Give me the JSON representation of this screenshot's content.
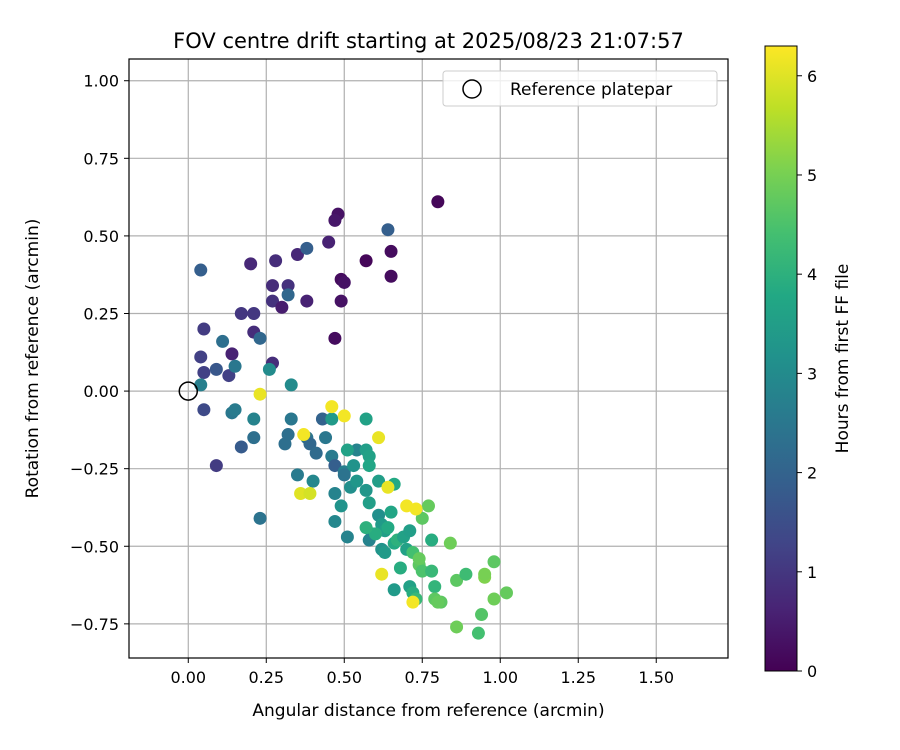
{
  "chart_data": {
    "type": "scatter",
    "title": "FOV centre drift starting at 2025/08/23 21:07:57",
    "xlabel": "Angular distance from reference (arcmin)",
    "ylabel": "Rotation from reference (arcmin)",
    "xlim": [
      -0.19,
      1.73
    ],
    "ylim": [
      -0.86,
      1.07
    ],
    "xticks": [
      "0.00",
      "0.25",
      "0.50",
      "0.75",
      "1.00",
      "1.25",
      "1.50"
    ],
    "xtick_values": [
      0,
      0.25,
      0.5,
      0.75,
      1.0,
      1.25,
      1.5
    ],
    "yticks": [
      "−0.75",
      "−0.50",
      "−0.25",
      "0.00",
      "0.25",
      "0.50",
      "0.75",
      "1.00"
    ],
    "ytick_values": [
      -0.75,
      -0.5,
      -0.25,
      0,
      0.25,
      0.5,
      0.75,
      1.0
    ],
    "grid": true,
    "legend": {
      "placement": "top-right",
      "entries": [
        "Reference platepar"
      ]
    },
    "reference_point": {
      "x": 0,
      "y": 0
    },
    "colorbar": {
      "label": "Hours from first FF file",
      "range": [
        0,
        6.3
      ],
      "ticks": [
        "0",
        "1",
        "2",
        "3",
        "4",
        "5",
        "6"
      ],
      "tick_values": [
        0,
        1,
        2,
        3,
        4,
        5,
        6
      ],
      "colormap": "viridis"
    },
    "points": [
      [
        0.8,
        0.61,
        0.1
      ],
      [
        0.48,
        0.57,
        0.3
      ],
      [
        0.47,
        0.55,
        0.4
      ],
      [
        0.65,
        0.45,
        0.2
      ],
      [
        0.65,
        0.37,
        0.2
      ],
      [
        0.57,
        0.42,
        0.1
      ],
      [
        0.49,
        0.36,
        0.2
      ],
      [
        0.5,
        0.35,
        0.3
      ],
      [
        0.49,
        0.29,
        0.3
      ],
      [
        0.45,
        0.48,
        0.6
      ],
      [
        0.35,
        0.44,
        0.7
      ],
      [
        0.28,
        0.42,
        0.8
      ],
      [
        0.2,
        0.41,
        0.7
      ],
      [
        0.27,
        0.34,
        0.8
      ],
      [
        0.32,
        0.34,
        0.9
      ],
      [
        0.27,
        0.29,
        0.9
      ],
      [
        0.38,
        0.29,
        0.6
      ],
      [
        0.3,
        0.27,
        0.5
      ],
      [
        0.47,
        0.17,
        0.2
      ],
      [
        0.21,
        0.19,
        0.8
      ],
      [
        0.21,
        0.25,
        1.0
      ],
      [
        0.17,
        0.25,
        1.0
      ],
      [
        0.14,
        0.12,
        0.6
      ],
      [
        0.27,
        0.09,
        0.8
      ],
      [
        0.13,
        0.05,
        1.2
      ],
      [
        0.05,
        0.2,
        1.1
      ],
      [
        0.05,
        0.06,
        1.2
      ],
      [
        0.04,
        0.11,
        1.2
      ],
      [
        0.09,
        -0.24,
        1.1
      ],
      [
        0.05,
        -0.06,
        1.4
      ],
      [
        0.04,
        0.39,
        1.9
      ],
      [
        0.38,
        0.46,
        1.9
      ],
      [
        0.64,
        0.52,
        1.9
      ],
      [
        0.32,
        0.31,
        2.1
      ],
      [
        0.11,
        0.16,
        2.3
      ],
      [
        0.09,
        0.07,
        1.7
      ],
      [
        0.15,
        0.08,
        2.5
      ],
      [
        0.23,
        0.17,
        2.1
      ],
      [
        0.04,
        0.02,
        2.7
      ],
      [
        0.26,
        0.07,
        3.0
      ],
      [
        0.33,
        0.02,
        3.0
      ],
      [
        0.14,
        -0.07,
        2.5
      ],
      [
        0.15,
        -0.06,
        2.6
      ],
      [
        0.17,
        -0.18,
        1.8
      ],
      [
        0.21,
        -0.15,
        2.3
      ],
      [
        0.21,
        -0.09,
        2.8
      ],
      [
        0.23,
        -0.41,
        2.4
      ],
      [
        0.33,
        -0.09,
        2.5
      ],
      [
        0.31,
        -0.17,
        2.3
      ],
      [
        0.32,
        -0.14,
        2.3
      ],
      [
        0.38,
        -0.15,
        2.4
      ],
      [
        0.39,
        -0.17,
        2.1
      ],
      [
        0.41,
        -0.2,
        2.2
      ],
      [
        0.43,
        -0.09,
        2.0
      ],
      [
        0.44,
        -0.15,
        2.5
      ],
      [
        0.46,
        -0.21,
        2.6
      ],
      [
        0.47,
        -0.24,
        1.9
      ],
      [
        0.46,
        -0.09,
        3.4
      ],
      [
        0.5,
        -0.26,
        2.7
      ],
      [
        0.54,
        -0.19,
        2.8
      ],
      [
        0.5,
        -0.27,
        2.4
      ],
      [
        0.35,
        -0.27,
        2.6
      ],
      [
        0.4,
        -0.29,
        2.9
      ],
      [
        0.47,
        -0.33,
        2.8
      ],
      [
        0.47,
        -0.42,
        2.9
      ],
      [
        0.51,
        -0.47,
        2.8
      ],
      [
        0.49,
        -0.37,
        3.2
      ],
      [
        0.51,
        -0.19,
        3.6
      ],
      [
        0.53,
        -0.24,
        3.2
      ],
      [
        0.52,
        -0.31,
        3.1
      ],
      [
        0.54,
        -0.29,
        3.3
      ],
      [
        0.57,
        -0.32,
        3.3
      ],
      [
        0.58,
        -0.36,
        3.5
      ],
      [
        0.57,
        -0.09,
        3.6
      ],
      [
        0.57,
        -0.19,
        3.5
      ],
      [
        0.58,
        -0.21,
        3.6
      ],
      [
        0.58,
        -0.24,
        3.7
      ],
      [
        0.61,
        -0.29,
        3.5
      ],
      [
        0.61,
        -0.4,
        3.1
      ],
      [
        0.62,
        -0.43,
        3.4
      ],
      [
        0.63,
        -0.45,
        3.5
      ],
      [
        0.59,
        -0.46,
        3.7
      ],
      [
        0.58,
        -0.48,
        2.8
      ],
      [
        0.62,
        -0.51,
        3.2
      ],
      [
        0.63,
        -0.52,
        3.4
      ],
      [
        0.64,
        -0.44,
        3.8
      ],
      [
        0.65,
        -0.39,
        3.7
      ],
      [
        0.66,
        -0.3,
        3.8
      ],
      [
        0.66,
        -0.49,
        3.8
      ],
      [
        0.67,
        -0.48,
        4.0
      ],
      [
        0.68,
        -0.57,
        3.9
      ],
      [
        0.69,
        -0.47,
        3.6
      ],
      [
        0.7,
        -0.51,
        3.6
      ],
      [
        0.71,
        -0.45,
        3.5
      ],
      [
        0.71,
        -0.63,
        3.6
      ],
      [
        0.72,
        -0.65,
        3.9
      ],
      [
        0.66,
        -0.64,
        3.4
      ],
      [
        0.72,
        -0.52,
        4.4
      ],
      [
        0.73,
        -0.67,
        4.2
      ],
      [
        0.74,
        -0.56,
        4.7
      ],
      [
        0.75,
        -0.58,
        4.5
      ],
      [
        0.75,
        -0.41,
        4.7
      ],
      [
        0.77,
        -0.37,
        4.8
      ],
      [
        0.78,
        -0.48,
        3.9
      ],
      [
        0.78,
        -0.58,
        4.2
      ],
      [
        0.79,
        -0.63,
        4.1
      ],
      [
        0.79,
        -0.67,
        4.7
      ],
      [
        0.81,
        -0.68,
        4.7
      ],
      [
        0.8,
        -0.68,
        4.8
      ],
      [
        0.84,
        -0.49,
        4.9
      ],
      [
        0.86,
        -0.61,
        4.7
      ],
      [
        0.89,
        -0.59,
        4.3
      ],
      [
        0.86,
        -0.76,
        4.9
      ],
      [
        0.93,
        -0.78,
        4.4
      ],
      [
        0.94,
        -0.72,
        4.6
      ],
      [
        0.95,
        -0.6,
        5.1
      ],
      [
        0.95,
        -0.59,
        5.0
      ],
      [
        0.98,
        -0.55,
        4.7
      ],
      [
        0.98,
        -0.67,
        4.9
      ],
      [
        1.02,
        -0.65,
        4.8
      ],
      [
        0.6,
        -0.46,
        3.9
      ],
      [
        0.57,
        -0.44,
        4.0
      ],
      [
        0.74,
        -0.54,
        4.8
      ],
      [
        0.64,
        -0.31,
        6.1
      ],
      [
        0.7,
        -0.37,
        6.2
      ],
      [
        0.73,
        -0.38,
        6.2
      ],
      [
        0.72,
        -0.68,
        6.2
      ],
      [
        0.62,
        -0.59,
        6.1
      ],
      [
        0.61,
        -0.15,
        6.1
      ],
      [
        0.5,
        -0.08,
        6.2
      ],
      [
        0.46,
        -0.05,
        6.2
      ],
      [
        0.37,
        -0.14,
        6.2
      ],
      [
        0.36,
        -0.33,
        6.0
      ],
      [
        0.39,
        -0.33,
        5.9
      ],
      [
        0.23,
        -0.01,
        6.1
      ]
    ]
  }
}
